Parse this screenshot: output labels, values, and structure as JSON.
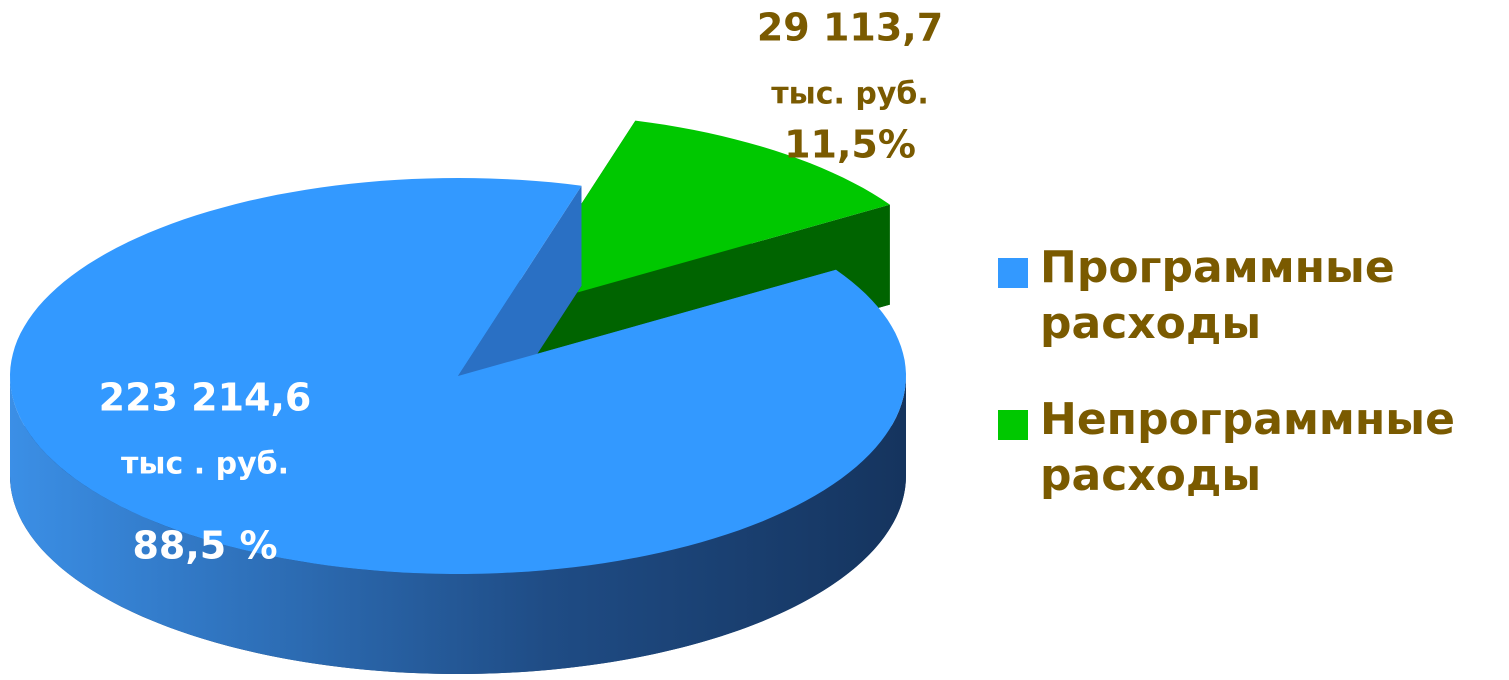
{
  "chart_data": {
    "type": "pie3d",
    "categories": [
      "Программные расходы",
      "Непрограммные расходы"
    ],
    "values": [
      223214.6,
      29113.7
    ],
    "value_labels": [
      "223 214,6",
      "29 113,7"
    ],
    "unit_labels": [
      "тыс . руб.",
      "тыс. руб."
    ],
    "percents": [
      88.5,
      11.5
    ],
    "percent_labels": [
      "88,5 %",
      "11,5%"
    ],
    "colors": [
      "#3399ff",
      "#00c800"
    ],
    "side_colors": [
      "#1c3d6b",
      "#006400"
    ],
    "legend": "right"
  }
}
